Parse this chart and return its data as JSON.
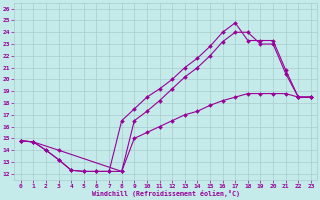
{
  "xlabel": "Windchill (Refroidissement éolien,°C)",
  "bg_color": "#c4eaea",
  "grid_color": "#a8cccc",
  "line_color": "#990099",
  "xlim": [
    -0.5,
    23.5
  ],
  "ylim": [
    11.5,
    26.5
  ],
  "xticks": [
    0,
    1,
    2,
    3,
    4,
    5,
    6,
    7,
    8,
    9,
    10,
    11,
    12,
    13,
    14,
    15,
    16,
    17,
    18,
    19,
    20,
    21,
    22,
    23
  ],
  "yticks": [
    12,
    13,
    14,
    15,
    16,
    17,
    18,
    19,
    20,
    21,
    22,
    23,
    24,
    25,
    26
  ],
  "series1_x": [
    0,
    1,
    2,
    3,
    4,
    5,
    6,
    7,
    8,
    9,
    10,
    11,
    12,
    13,
    14,
    15,
    16,
    17,
    18,
    19,
    20,
    21,
    22,
    23
  ],
  "series1_y": [
    14.8,
    14.7,
    14.0,
    13.2,
    12.3,
    12.2,
    12.2,
    12.2,
    16.5,
    17.5,
    18.5,
    19.2,
    20.0,
    21.0,
    21.8,
    22.8,
    24.0,
    24.8,
    23.3,
    23.3,
    23.3,
    20.8,
    18.5,
    18.5
  ],
  "series2_x": [
    0,
    1,
    2,
    3,
    4,
    5,
    6,
    7,
    8,
    9,
    10,
    11,
    12,
    13,
    14,
    15,
    16,
    17,
    18,
    19,
    20,
    21,
    22,
    23
  ],
  "series2_y": [
    14.8,
    14.7,
    14.0,
    13.2,
    12.3,
    12.2,
    12.2,
    12.2,
    12.2,
    16.5,
    17.3,
    18.2,
    19.2,
    20.2,
    21.0,
    22.0,
    23.2,
    24.0,
    24.0,
    23.0,
    23.0,
    20.5,
    18.5,
    18.5
  ],
  "series3_x": [
    0,
    1,
    3,
    8,
    9,
    10,
    11,
    12,
    13,
    14,
    15,
    16,
    17,
    18,
    19,
    20,
    21,
    22,
    23
  ],
  "series3_y": [
    14.8,
    14.7,
    14.0,
    12.2,
    15.0,
    15.5,
    16.0,
    16.5,
    17.0,
    17.3,
    17.8,
    18.2,
    18.5,
    18.8,
    18.8,
    18.8,
    18.8,
    18.5,
    18.5
  ]
}
